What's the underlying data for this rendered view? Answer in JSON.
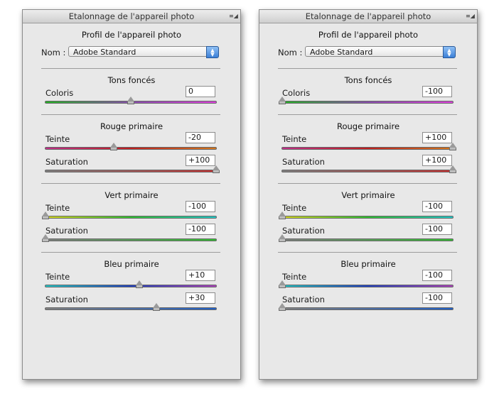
{
  "panels": [
    {
      "title": "Etalonnage de l'appareil photo",
      "profile_title": "Profil de l'appareil photo",
      "nom_label": "Nom :",
      "profile_value": "Adobe Standard",
      "shadows": {
        "title": "Tons foncés",
        "tint": {
          "label": "Coloris",
          "value": "0",
          "gradient": "linear-gradient(90deg,#22b422,#8a4fb0 50%,#e040e0)",
          "level": 0.5
        }
      },
      "red": {
        "title": "Rouge primaire",
        "hue": {
          "label": "Teinte",
          "value": "-20",
          "gradient": "linear-gradient(90deg,#c0308a,#c02020 50%,#d4781e)",
          "level": 0.4
        },
        "saturation": {
          "label": "Saturation",
          "value": "+100",
          "gradient": "linear-gradient(90deg,#808080,#c83030)",
          "level": 1.0
        }
      },
      "green": {
        "title": "Vert primaire",
        "hue": {
          "label": "Teinte",
          "value": "-100",
          "gradient": "linear-gradient(90deg,#d8d820,#30c030 50%,#20c8c8)",
          "level": 0.0
        },
        "saturation": {
          "label": "Saturation",
          "value": "-100",
          "gradient": "linear-gradient(90deg,#808080,#30c030)",
          "level": 0.0
        }
      },
      "blue": {
        "title": "Bleu primaire",
        "hue": {
          "label": "Teinte",
          "value": "+10",
          "gradient": "linear-gradient(90deg,#20c8c8,#2040c0 50%,#b040c0)",
          "level": 0.55
        },
        "saturation": {
          "label": "Saturation",
          "value": "+30",
          "gradient": "linear-gradient(90deg,#808080,#2060c8)",
          "level": 0.65
        }
      }
    },
    {
      "title": "Etalonnage de l'appareil photo",
      "profile_title": "Profil de l'appareil photo",
      "nom_label": "Nom :",
      "profile_value": "Adobe Standard",
      "shadows": {
        "title": "Tons foncés",
        "tint": {
          "label": "Coloris",
          "value": "-100",
          "gradient": "linear-gradient(90deg,#22b422,#8a4fb0 50%,#e040e0)",
          "level": 0.0
        }
      },
      "red": {
        "title": "Rouge primaire",
        "hue": {
          "label": "Teinte",
          "value": "+100",
          "gradient": "linear-gradient(90deg,#c0308a,#c02020 50%,#d4781e)",
          "level": 1.0
        },
        "saturation": {
          "label": "Saturation",
          "value": "+100",
          "gradient": "linear-gradient(90deg,#808080,#c83030)",
          "level": 1.0
        }
      },
      "green": {
        "title": "Vert primaire",
        "hue": {
          "label": "Teinte",
          "value": "-100",
          "gradient": "linear-gradient(90deg,#d8d820,#30c030 50%,#20c8c8)",
          "level": 0.0
        },
        "saturation": {
          "label": "Saturation",
          "value": "-100",
          "gradient": "linear-gradient(90deg,#808080,#30c030)",
          "level": 0.0
        }
      },
      "blue": {
        "title": "Bleu primaire",
        "hue": {
          "label": "Teinte",
          "value": "-100",
          "gradient": "linear-gradient(90deg,#20c8c8,#2040c0 50%,#b040c0)",
          "level": 0.0
        },
        "saturation": {
          "label": "Saturation",
          "value": "-100",
          "gradient": "linear-gradient(90deg,#808080,#2060c8)",
          "level": 0.0
        }
      }
    }
  ]
}
